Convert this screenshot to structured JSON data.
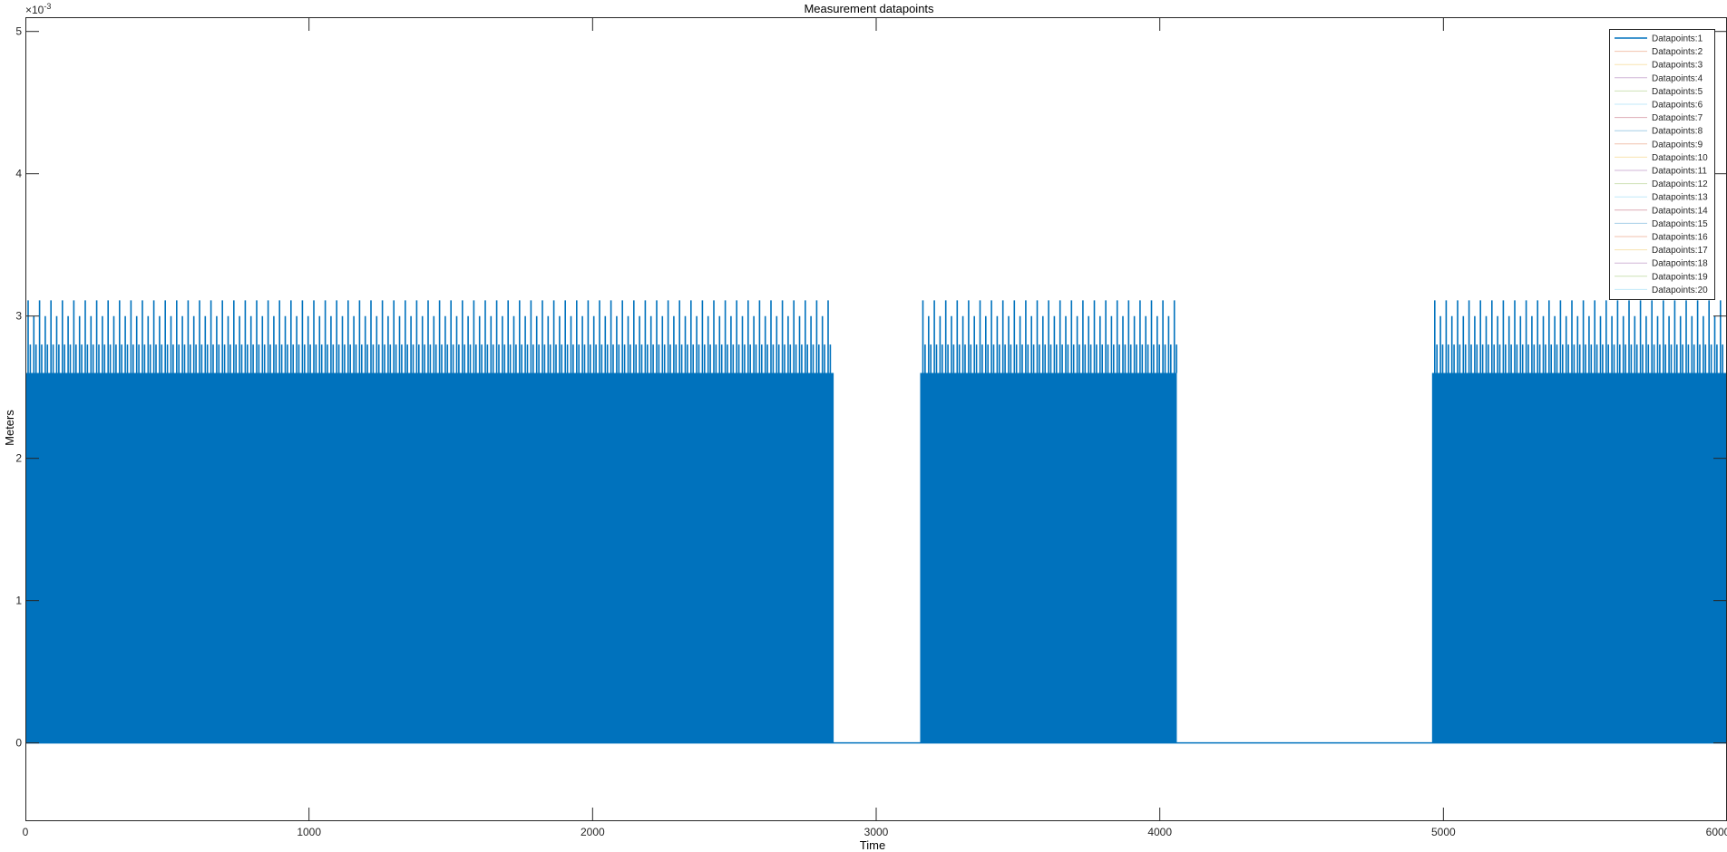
{
  "chart_data": {
    "type": "line",
    "title": "Measurement datapoints",
    "xlabel": "Time",
    "ylabel": "Meters",
    "y_exponent_label": "×10",
    "y_exponent": "-3",
    "xlim": [
      0,
      6000
    ],
    "ylim": [
      -0.00055,
      0.0051
    ],
    "xticks": [
      0,
      1000,
      2000,
      3000,
      4000,
      5000,
      6000
    ],
    "xtick_labels": [
      "0",
      "1000",
      "2000",
      "3000",
      "4000",
      "5000",
      "6000"
    ],
    "yticks": [
      0,
      0.001,
      0.002,
      0.003,
      0.004,
      0.005
    ],
    "ytick_labels": [
      "0",
      "1",
      "2",
      "3",
      "4",
      "5"
    ],
    "grid": false,
    "legend_position": "top-right",
    "series": [
      {
        "name": "Datapoints:1",
        "color": "#0072BD",
        "active_intervals": [
          [
            0,
            2850
          ],
          [
            3155,
            4060
          ],
          [
            4960,
            6000
          ]
        ],
        "baseline": 0,
        "peak_levels": [
          0.0026,
          0.0028,
          0.003,
          0.00311
        ]
      },
      {
        "name": "Datapoints:2",
        "color": "#D95319",
        "hidden": true
      },
      {
        "name": "Datapoints:3",
        "color": "#EDB120",
        "hidden": true
      },
      {
        "name": "Datapoints:4",
        "color": "#7E2F8E",
        "hidden": true
      },
      {
        "name": "Datapoints:5",
        "color": "#77AC30",
        "hidden": true
      },
      {
        "name": "Datapoints:6",
        "color": "#4DBEEE",
        "hidden": true
      },
      {
        "name": "Datapoints:7",
        "color": "#A2142F",
        "hidden": true
      },
      {
        "name": "Datapoints:8",
        "color": "#0072BD",
        "hidden": true
      },
      {
        "name": "Datapoints:9",
        "color": "#D95319",
        "hidden": true
      },
      {
        "name": "Datapoints:10",
        "color": "#EDB120",
        "hidden": true
      },
      {
        "name": "Datapoints:11",
        "color": "#7E2F8E",
        "hidden": true
      },
      {
        "name": "Datapoints:12",
        "color": "#77AC30",
        "hidden": true
      },
      {
        "name": "Datapoints:13",
        "color": "#4DBEEE",
        "hidden": true
      },
      {
        "name": "Datapoints:14",
        "color": "#A2142F",
        "hidden": true
      },
      {
        "name": "Datapoints:15",
        "color": "#0072BD",
        "hidden": true
      },
      {
        "name": "Datapoints:16",
        "color": "#D95319",
        "hidden": true
      },
      {
        "name": "Datapoints:17",
        "color": "#EDB120",
        "hidden": true
      },
      {
        "name": "Datapoints:18",
        "color": "#7E2F8E",
        "hidden": true
      },
      {
        "name": "Datapoints:19",
        "color": "#77AC30",
        "hidden": true
      },
      {
        "name": "Datapoints:20",
        "color": "#4DBEEE",
        "hidden": true
      }
    ]
  }
}
